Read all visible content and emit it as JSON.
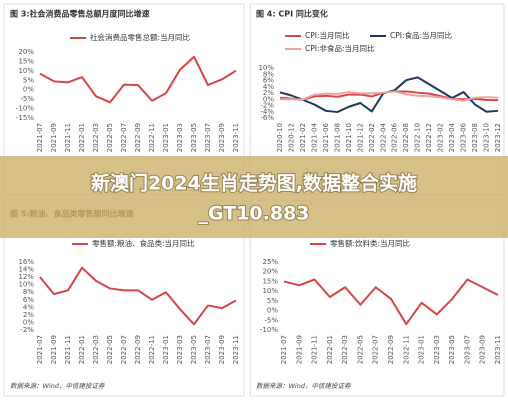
{
  "chart_data": [
    {
      "type": "line",
      "title": "图 3:社会消费品零售总额月度同比增速",
      "categories": [
        "2021-07",
        "2021-09",
        "2021-11",
        "2022-01",
        "2022-03",
        "2022-05",
        "2022-07",
        "2022-09",
        "2022-11",
        "2023-01",
        "2023-03",
        "2023-05",
        "2023-07",
        "2023-09",
        "2023-11"
      ],
      "series": [
        {
          "name": "社会消费品零售总额:当月同比",
          "color": "#d64545",
          "values": [
            8.5,
            4.4,
            3.9,
            6.7,
            -3.5,
            -6.7,
            2.7,
            2.5,
            -5.9,
            -1.8,
            10.6,
            17.5,
            2.5,
            5.5,
            10.1
          ]
        }
      ],
      "ylim": [
        -15,
        20
      ],
      "yticks": [
        {
          "value": -15,
          "label": "-15%"
        },
        {
          "value": -10,
          "label": "-10%"
        },
        {
          "value": -5,
          "label": "-5%"
        },
        {
          "value": 0,
          "label": "0%"
        },
        {
          "value": 5,
          "label": "5%"
        },
        {
          "value": 10,
          "label": "10%"
        },
        {
          "value": 15,
          "label": "15%"
        },
        {
          "value": 20,
          "label": "20%"
        }
      ],
      "grid": false
    },
    {
      "type": "line",
      "title": "图 4: CPI 同比变化",
      "categories": [
        "2020-10",
        "2020-12",
        "2021-02",
        "2021-04",
        "2021-06",
        "2021-08",
        "2021-10",
        "2021-12",
        "2022-02",
        "2022-04",
        "2022-06",
        "2022-08",
        "2022-10",
        "2022-12",
        "2023-02",
        "2023-04",
        "2023-06",
        "2023-08",
        "2023-10",
        "2023-12"
      ],
      "series": [
        {
          "name": "CPI:当月同比",
          "color": "#d64545",
          "values": [
            0.5,
            0.2,
            -0.2,
            0.9,
            1.1,
            0.8,
            1.5,
            1.5,
            0.9,
            2.1,
            2.5,
            2.5,
            2.1,
            1.8,
            1.0,
            0.1,
            0.0,
            0.1,
            -0.2,
            -0.3
          ]
        },
        {
          "name": "CPI:食品:当月同比",
          "color": "#1f3a5f",
          "values": [
            2.2,
            1.2,
            -0.2,
            -1.7,
            -3.7,
            -4.1,
            -2.4,
            -1.2,
            -3.9,
            1.9,
            2.9,
            6.1,
            7.0,
            4.8,
            2.6,
            0.4,
            2.3,
            -1.7,
            -4.0,
            -3.7
          ]
        },
        {
          "name": "CPI:非食品:当月同比",
          "color": "#f0a0a0",
          "values": [
            0.0,
            0.0,
            -0.1,
            1.5,
            1.8,
            1.7,
            2.3,
            1.9,
            1.9,
            2.1,
            2.5,
            1.6,
            1.1,
            1.0,
            0.6,
            0.0,
            -0.5,
            0.5,
            0.7,
            0.5
          ]
        }
      ],
      "ylim": [
        -6,
        10
      ],
      "yticks": [
        {
          "value": -6,
          "label": "-6%"
        },
        {
          "value": -4,
          "label": "-4%"
        },
        {
          "value": -2,
          "label": "-2%"
        },
        {
          "value": 0,
          "label": "0%"
        },
        {
          "value": 2,
          "label": "2%"
        },
        {
          "value": 4,
          "label": "4%"
        },
        {
          "value": 6,
          "label": "6%"
        },
        {
          "value": 8,
          "label": "8%"
        },
        {
          "value": 10,
          "label": "10%"
        }
      ],
      "grid": false
    },
    {
      "type": "line",
      "title": "图 5:粮油、食品类零售额同比增速",
      "categories": [
        "2021-07",
        "2021-09",
        "2021-11",
        "2022-01",
        "2022-03",
        "2022-05",
        "2022-07",
        "2022-09",
        "2022-11",
        "2023-01",
        "2023-03",
        "2023-05",
        "2023-07",
        "2023-09",
        "2023-11"
      ],
      "series": [
        {
          "name": "零售额:粮油、食品类:当月同比",
          "color": "#d64545",
          "values": [
            12,
            7.5,
            8.5,
            14.5,
            11,
            9,
            8.5,
            8.5,
            6,
            8,
            3.5,
            -0.5,
            4.5,
            3.8,
            5.8
          ]
        }
      ],
      "ylim": [
        -2,
        16
      ],
      "yticks": [
        {
          "value": -2,
          "label": "-2%"
        },
        {
          "value": 0,
          "label": "0%"
        },
        {
          "value": 2,
          "label": "2%"
        },
        {
          "value": 4,
          "label": "4%"
        },
        {
          "value": 6,
          "label": "6%"
        },
        {
          "value": 8,
          "label": "8%"
        },
        {
          "value": 10,
          "label": "10%"
        },
        {
          "value": 12,
          "label": "12%"
        },
        {
          "value": 14,
          "label": "14%"
        },
        {
          "value": 16,
          "label": "16%"
        }
      ],
      "grid": false,
      "source": "数据来源：Wind，中信建投证券"
    },
    {
      "type": "line",
      "categories": [
        "2021-07",
        "2021-09",
        "2021-11",
        "2022-01",
        "2022-03",
        "2022-05",
        "2022-07",
        "2022-09",
        "2022-11",
        "2023-01",
        "2023-03",
        "2023-05",
        "2023-07",
        "2023-09",
        "2023-11"
      ],
      "series": [
        {
          "name": "零售额:饮料类:当月同比",
          "color": "#d64545",
          "values": [
            15,
            13,
            16,
            7,
            12,
            3,
            12,
            6,
            -7,
            4,
            -2,
            6,
            16,
            12,
            8
          ]
        }
      ],
      "ylim": [
        -10,
        25
      ],
      "yticks": [
        {
          "value": -10,
          "label": "-10%"
        },
        {
          "value": -5,
          "label": "-5%"
        },
        {
          "value": 0,
          "label": "0%"
        },
        {
          "value": 5,
          "label": "5%"
        },
        {
          "value": 10,
          "label": "10%"
        },
        {
          "value": 15,
          "label": "15%"
        },
        {
          "value": 20,
          "label": "20%"
        },
        {
          "value": 25,
          "label": "25%"
        }
      ],
      "grid": false,
      "source": "数据来源：Wind，中信建投证券"
    }
  ],
  "banner": {
    "line1": "新澳门2024生肖走势图,数据整合实施",
    "line2": "_GT10.883"
  }
}
